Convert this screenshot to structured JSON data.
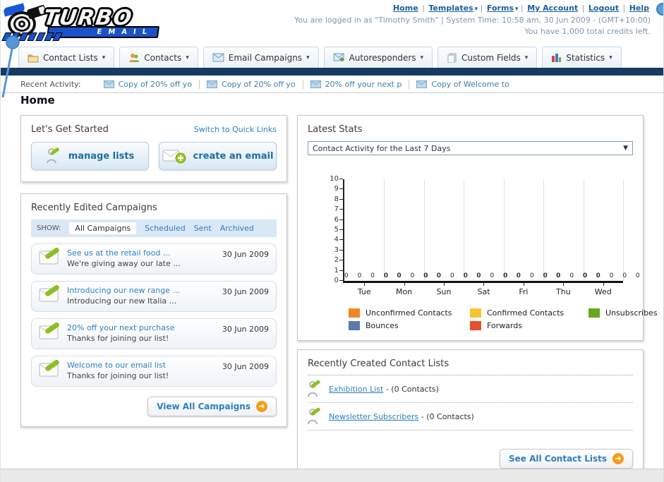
{
  "header": {
    "nav_links": [
      {
        "label": "Home",
        "dropdown": false
      },
      {
        "label": "Templates",
        "dropdown": true
      },
      {
        "label": "Forms",
        "dropdown": true
      },
      {
        "label": "My Account",
        "dropdown": false
      },
      {
        "label": "Logout",
        "dropdown": false
      },
      {
        "label": "Help",
        "dropdown": false
      }
    ],
    "status_line1": "You are logged in as \"Timothy Smith\" | System Time: 10:58 am, 30 Jun 2009 - (GMT+10:00)",
    "status_line2": "You have 1,000 total credits left.",
    "logo_line1": "TURBO",
    "logo_line2": "EMAIL"
  },
  "nav_tabs": [
    {
      "label": "Contact Lists",
      "icon": "folder-icon"
    },
    {
      "label": "Contacts",
      "icon": "people-icon"
    },
    {
      "label": "Email Campaigns",
      "icon": "envelope-icon"
    },
    {
      "label": "Autoresponders",
      "icon": "envelope-send-icon"
    },
    {
      "label": "Custom Fields",
      "icon": "documents-icon"
    },
    {
      "label": "Statistics",
      "icon": "bar-chart-icon"
    }
  ],
  "recent_activity": {
    "label": "Recent Activity:",
    "items": [
      "Copy of 20% off yo",
      "Copy of 20% off yo",
      "20% off your next p",
      "Copy of Welcome to"
    ]
  },
  "page_title": "Home",
  "get_started": {
    "title": "Let's Get Started",
    "switch_link": "Switch to Quick Links",
    "manage_lists_label": "manage lists",
    "create_email_label": "create an email"
  },
  "campaigns": {
    "title": "Recently Edited Campaigns",
    "show_label": "SHOW:",
    "filters": [
      "All Campaigns",
      "Scheduled",
      "Sent",
      "Archived"
    ],
    "active_filter": "All Campaigns",
    "items": [
      {
        "title": "See us at the retail food ...",
        "subtitle": "We're giving away our late ...",
        "date": "30 Jun 2009"
      },
      {
        "title": "Introducing our new range ...",
        "subtitle": "Introducing our new Italia ...",
        "date": "30 Jun 2009"
      },
      {
        "title": "20% off your next purchase",
        "subtitle": "Thanks for joining our list!",
        "date": "30 Jun 2009"
      },
      {
        "title": "Welcome to our email list",
        "subtitle": "Thanks for joining our list!",
        "date": "30 Jun 2009"
      }
    ],
    "view_all_label": "View All Campaigns"
  },
  "latest_stats": {
    "title": "Latest Stats",
    "dropdown_value": "Contact Activity for the Last 7 Days"
  },
  "chart_data": {
    "type": "bar",
    "title": "Contact Activity for the Last 7 Days",
    "categories": [
      "Tue",
      "Mon",
      "Sun",
      "Sat",
      "Fri",
      "Thu",
      "Wed"
    ],
    "series": [
      {
        "name": "Unconfirmed Contacts",
        "color": "#f28627",
        "values": [
          0,
          0,
          0,
          0,
          0,
          0,
          0
        ]
      },
      {
        "name": "Confirmed Contacts",
        "color": "#f6c430",
        "values": [
          0,
          0,
          0,
          0,
          0,
          0,
          0
        ]
      },
      {
        "name": "Unsubscribes",
        "color": "#69a71e",
        "values": [
          0,
          0,
          0,
          0,
          0,
          0,
          0
        ]
      },
      {
        "name": "Bounces",
        "color": "#5b79ad",
        "values": [
          0,
          0,
          0,
          0,
          0,
          0,
          0
        ]
      },
      {
        "name": "Forwards",
        "color": "#e8502b",
        "values": [
          0,
          0,
          0,
          0,
          0,
          0,
          0
        ]
      }
    ],
    "ylim": [
      0,
      10
    ],
    "y_ticks": [
      0,
      1,
      2,
      3,
      4,
      5,
      6,
      7,
      8,
      9,
      10
    ],
    "grid": "vertical",
    "legend_position": "bottom",
    "value_labels_shown": true
  },
  "contact_lists": {
    "title": "Recently Created Contact Lists",
    "items": [
      {
        "name": "Exhibition List",
        "suffix": "- (0 Contacts)"
      },
      {
        "name": "Newsletter Subscribers",
        "suffix": "- (0 Contacts)"
      }
    ],
    "see_all_label": "See All Contact Lists"
  },
  "colors": {
    "navy_bar": "#163a60",
    "link_blue": "#2f7fbd",
    "accent_orange": "#f59d18",
    "logo_blue": "#1b52c8"
  }
}
